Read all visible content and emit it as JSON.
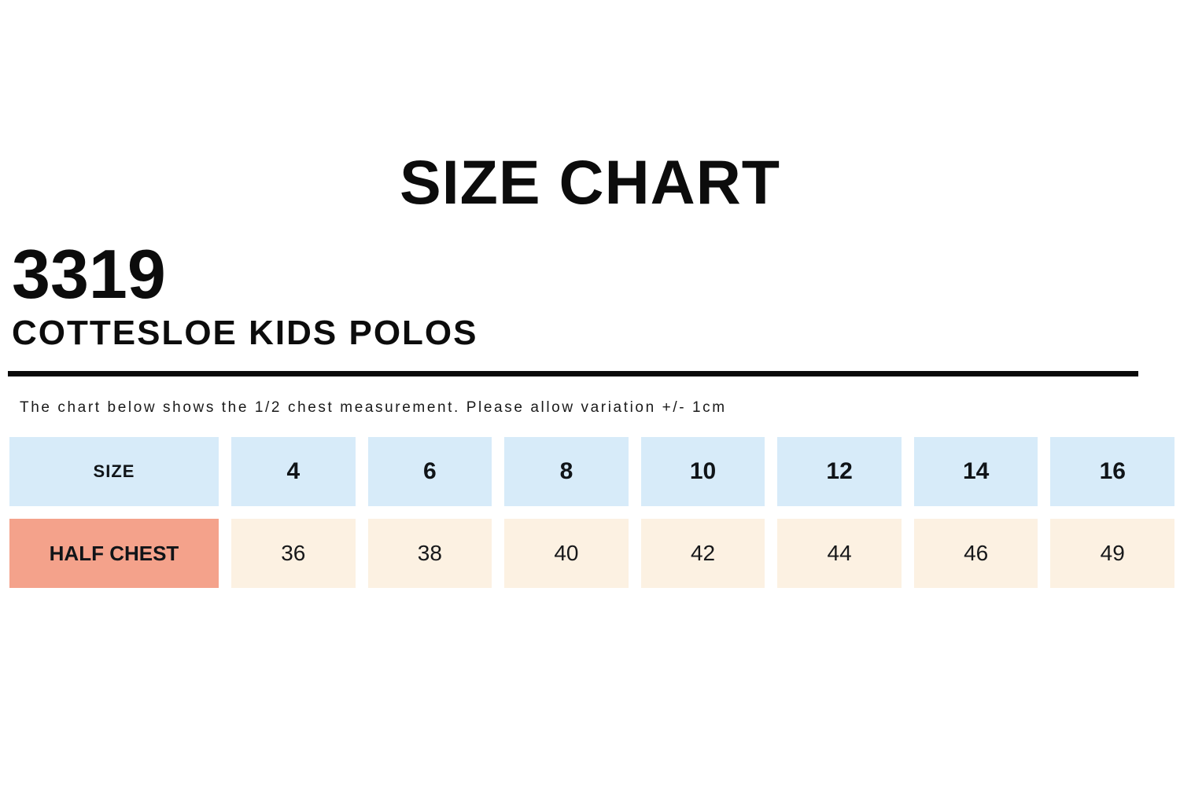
{
  "page": {
    "title": "SIZE CHART",
    "product_code": "3319",
    "product_name": "COTTESLOE KIDS POLOS",
    "note": "The chart below shows the 1/2 chest measurement. Please allow variation +/- 1cm"
  },
  "table": {
    "header": [
      "SIZE",
      "4",
      "6",
      "8",
      "10",
      "12",
      "14",
      "16"
    ],
    "row": [
      "HALF CHEST",
      "36",
      "38",
      "40",
      "42",
      "44",
      "46",
      "49"
    ]
  },
  "chart_data": {
    "type": "table",
    "title": "SIZE CHART",
    "subtitle": "3319 COTTESLOE KIDS POLOS",
    "note": "The chart below shows the 1/2 chest measurement. Please allow variation +/- 1cm",
    "columns": [
      "SIZE",
      "4",
      "6",
      "8",
      "10",
      "12",
      "14",
      "16"
    ],
    "rows": [
      {
        "label": "HALF CHEST",
        "values": [
          36,
          38,
          40,
          42,
          44,
          46,
          49
        ]
      }
    ]
  },
  "colors": {
    "size_row_bg": "#d7ebf9",
    "half_chest_label_bg": "#f4a28b",
    "half_chest_value_bg": "#fcf1e2",
    "divider": "#0a0a0a",
    "text": "#0c0c0c"
  }
}
